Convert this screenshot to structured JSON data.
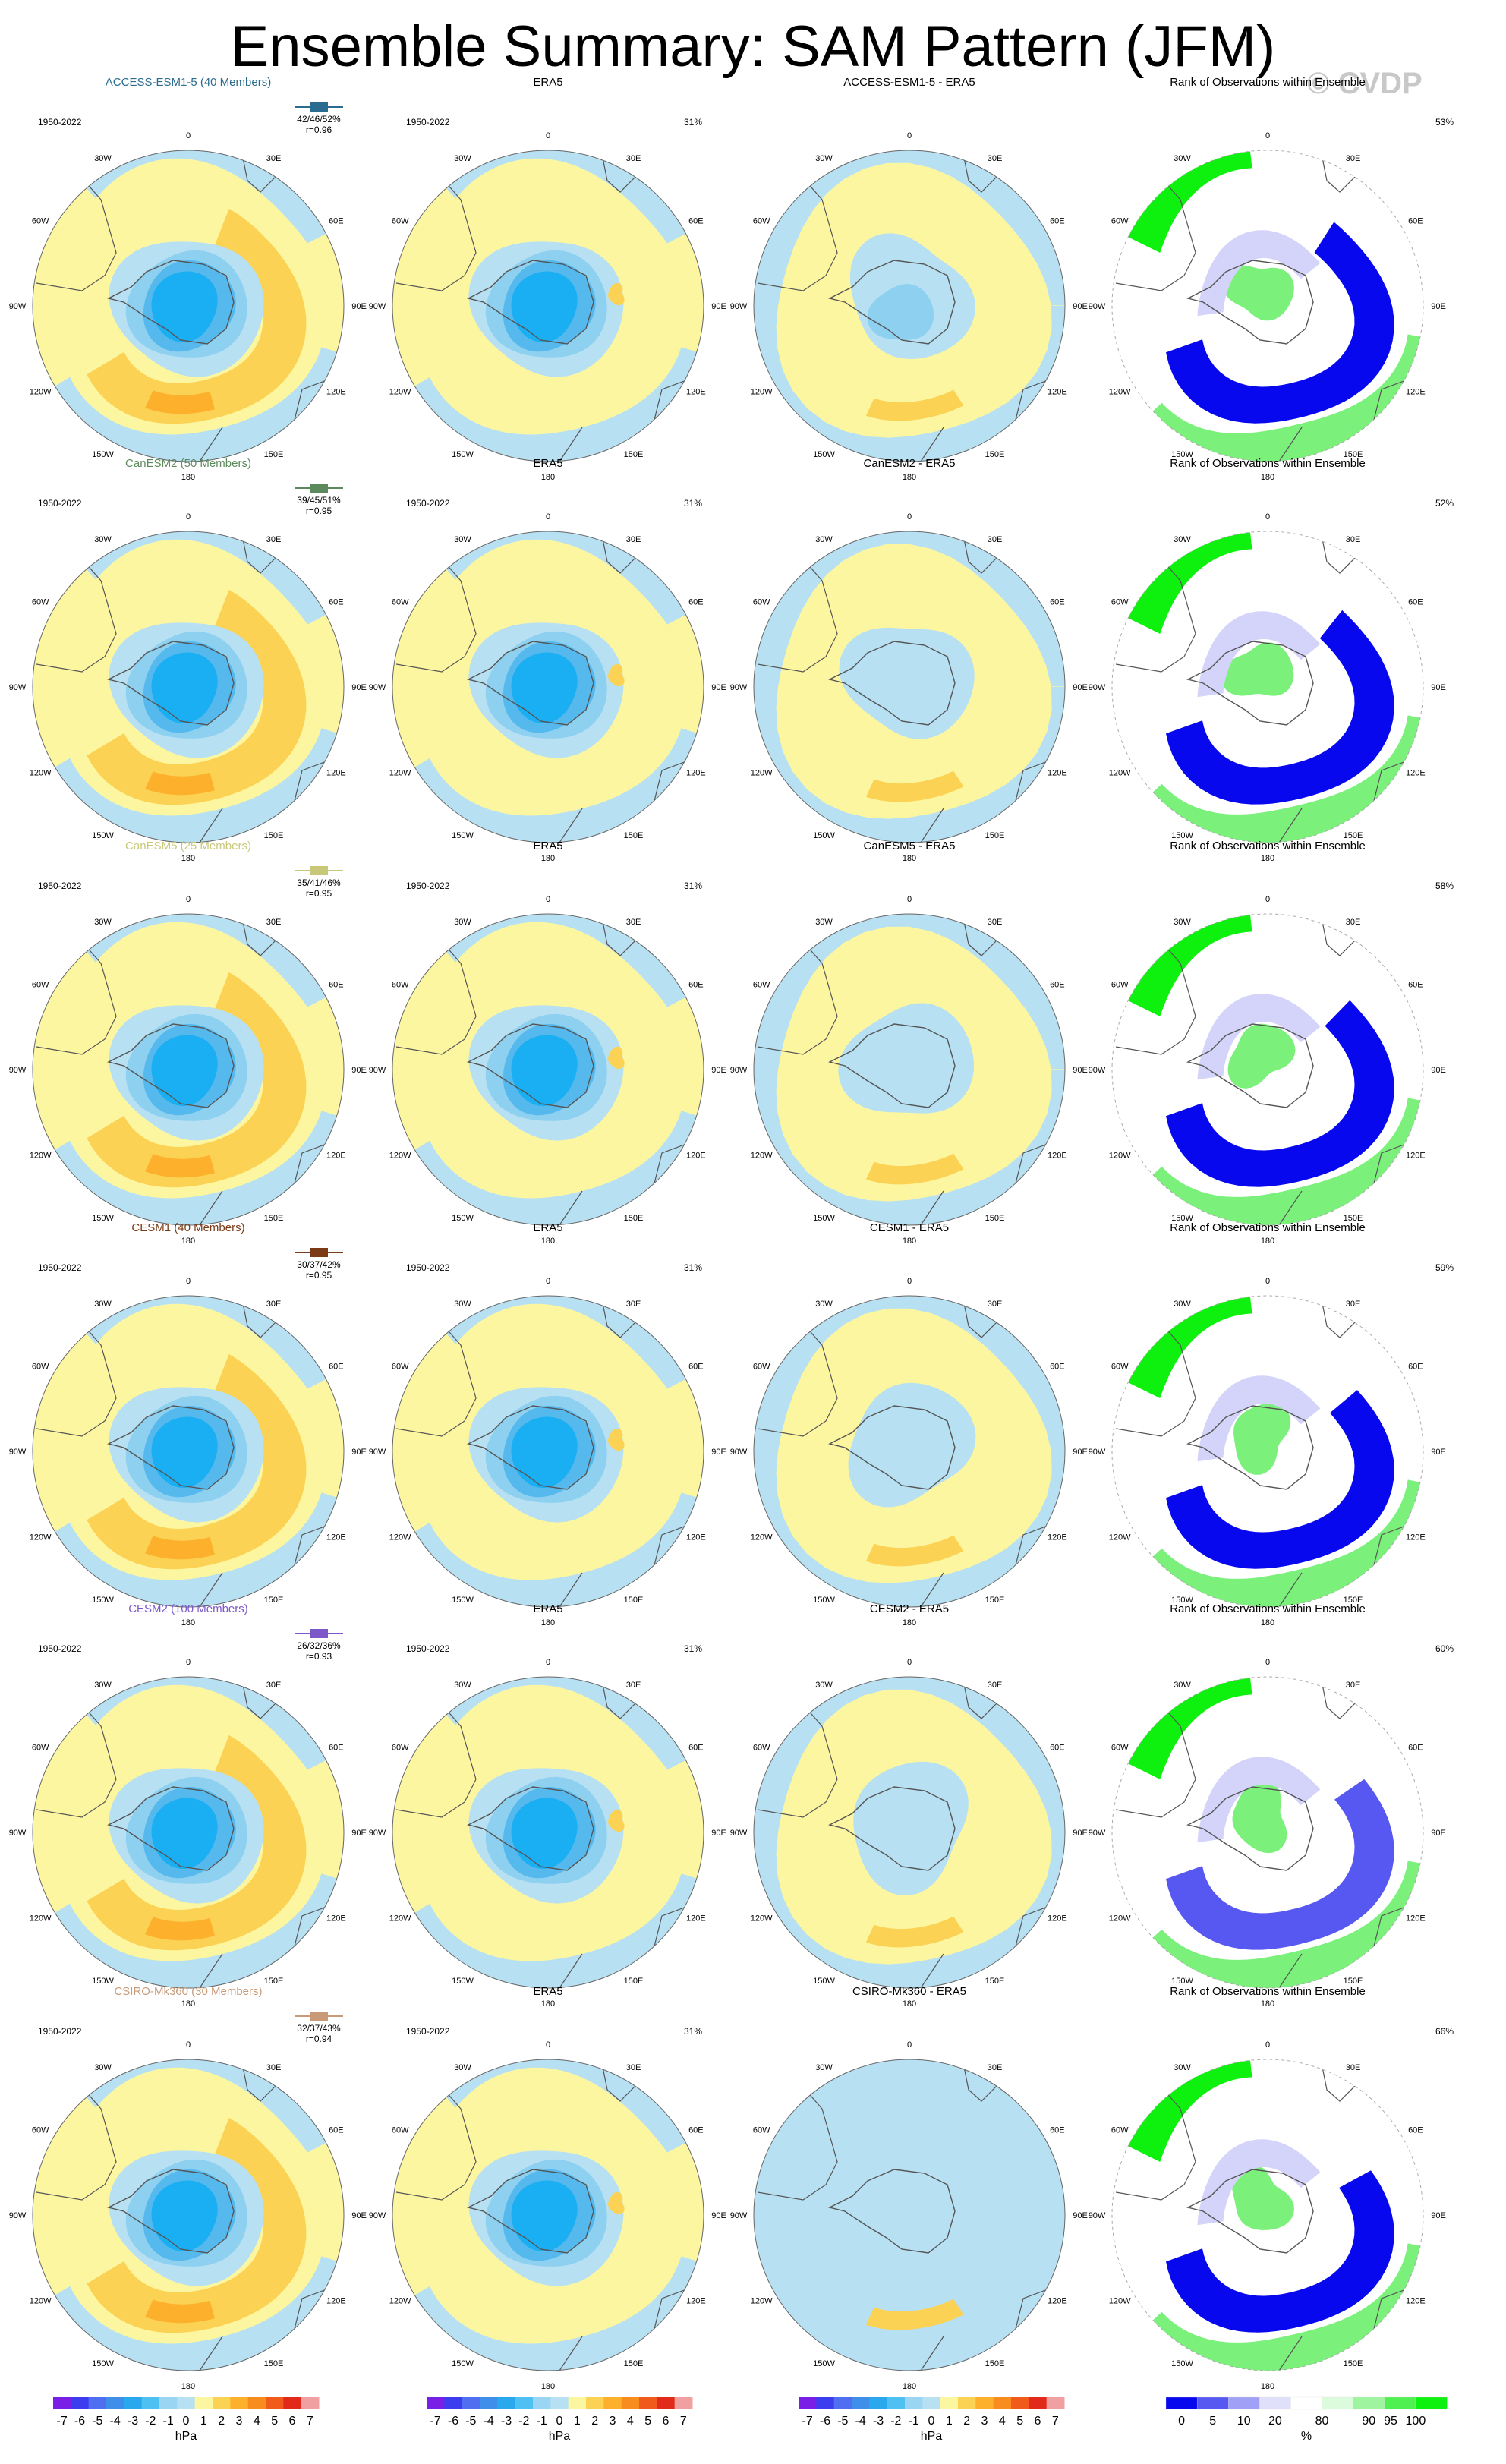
{
  "title": "Ensemble Summary: SAM Pattern (JFM)",
  "watermark": "© CVDP",
  "colors": {
    "ocean_neutral": "#fdf6a0",
    "neutral_neg": "#b7e0f3",
    "neg_1": "#8ed0f0",
    "neg_2": "#56b9ee",
    "neg_3": "#1aaef2",
    "neg_4": "#3f7de6",
    "pos_1": "#fbd253",
    "pos_2": "#fcb02b",
    "pos_3": "#f57a1f",
    "rank_low_5": "#0808ee",
    "rank_low_10": "#5757f2",
    "rank_low_20": "#d4d4fa",
    "rank_high_90": "#c4f8c4",
    "rank_high_95": "#7bf07b",
    "rank_high_100": "#0ef00e"
  },
  "common": {
    "era5_label": "ERA5",
    "period": "1950-2022",
    "era5_pct": "31%",
    "rank_title": "Rank of Observations within Ensemble",
    "lon_labels": [
      "0",
      "30E",
      "60E",
      "90E",
      "120E",
      "150E",
      "180",
      "150W",
      "120W",
      "90W",
      "60W",
      "30W"
    ]
  },
  "rows": [
    {
      "model": "ACCESS-ESM1-5 (40 Members)",
      "model_color": "#2a6c8f",
      "stats": "42/46/52%",
      "r": "r=0.96",
      "diff_title": "ACCESS-ESM1-5 - ERA5",
      "rank_pct": "53%"
    },
    {
      "model": "CanESM2 (50 Members)",
      "model_color": "#5d8a5d",
      "stats": "39/45/51%",
      "r": "r=0.95",
      "diff_title": "CanESM2 - ERA5",
      "rank_pct": "52%"
    },
    {
      "model": "CanESM5 (25 Members)",
      "model_color": "#c8c87a",
      "stats": "35/41/46%",
      "r": "r=0.95",
      "diff_title": "CanESM5 - ERA5",
      "rank_pct": "58%"
    },
    {
      "model": "CESM1 (40 Members)",
      "model_color": "#7b3a16",
      "stats": "30/37/42%",
      "r": "r=0.95",
      "diff_title": "CESM1 - ERA5",
      "rank_pct": "59%"
    },
    {
      "model": "CESM2 (100 Members)",
      "model_color": "#7c58c9",
      "stats": "26/32/36%",
      "r": "r=0.93",
      "diff_title": "CESM2 - ERA5",
      "rank_pct": "60%"
    },
    {
      "model": "CSIRO-Mk360 (30 Members)",
      "model_color": "#c89a78",
      "stats": "32/37/43%",
      "r": "r=0.94",
      "diff_title": "CSIRO-Mk360 - ERA5",
      "rank_pct": "66%"
    }
  ],
  "chart_data": [
    {
      "type": "heatmap",
      "description_scale": "SAM pattern sea-level pressure regression maps (polar stereographic, Southern Hemisphere)",
      "colorbar": {
        "unit": "hPa",
        "levels": [
          -7,
          -6,
          -5,
          -4,
          -3,
          -2,
          -1,
          0,
          1,
          2,
          3,
          4,
          5,
          6,
          7
        ],
        "tick_labels": [
          "-7",
          "-6",
          "-5",
          "-4",
          "-3",
          "-2",
          "-1",
          "0",
          "1",
          "2",
          "3",
          "4",
          "5",
          "6",
          "7"
        ],
        "colors": [
          "#7a1fe6",
          "#3d3df0",
          "#4f6ff0",
          "#3f8fea",
          "#2aa8ee",
          "#4fc0f2",
          "#9ad6f4",
          "#b7e0f3",
          "#fdf6a0",
          "#fbd253",
          "#fcb02b",
          "#f98c1f",
          "#f05a1a",
          "#e22a1a",
          "#f0a0a0"
        ]
      }
    },
    {
      "type": "heatmap",
      "description_scale": "Rank of observations within ensemble",
      "colorbar": {
        "unit": "%",
        "tick_labels": [
          "0",
          "5",
          "10",
          "20",
          "80",
          "90",
          "95",
          "100"
        ],
        "colors": [
          "#0808ee",
          "#5757f2",
          "#a0a0f6",
          "#e0e0fb",
          "#ffffff",
          "#dcfadc",
          "#9ff59f",
          "#4ff04f",
          "#0ef00e"
        ]
      }
    }
  ]
}
